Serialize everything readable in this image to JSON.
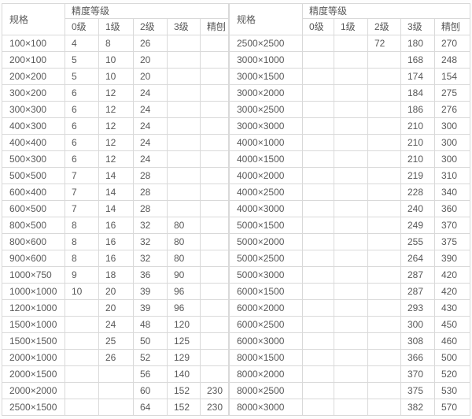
{
  "colors": {
    "border": "#d9d9d9",
    "text": "#595959",
    "cell_background": "#ffffff"
  },
  "left_table": {
    "spec_header": "规格",
    "grade_header": "精度等级",
    "grade_columns": [
      "0级",
      "1级",
      "2级",
      "3级",
      "精刨"
    ],
    "rows": [
      {
        "spec": "100×100",
        "values": [
          "4",
          "8",
          "26",
          "",
          ""
        ]
      },
      {
        "spec": "200×100",
        "values": [
          "5",
          "10",
          "20",
          "",
          ""
        ]
      },
      {
        "spec": "200×200",
        "values": [
          "5",
          "10",
          "20",
          "",
          ""
        ]
      },
      {
        "spec": "300×200",
        "values": [
          "6",
          "12",
          "24",
          "",
          ""
        ]
      },
      {
        "spec": "300×300",
        "values": [
          "6",
          "12",
          "24",
          "",
          ""
        ]
      },
      {
        "spec": "400×300",
        "values": [
          "6",
          "12",
          "24",
          "",
          ""
        ]
      },
      {
        "spec": "400×400",
        "values": [
          "6",
          "12",
          "24",
          "",
          ""
        ]
      },
      {
        "spec": "500×300",
        "values": [
          "6",
          "12",
          "24",
          "",
          ""
        ]
      },
      {
        "spec": "500×500",
        "values": [
          "7",
          "14",
          "28",
          "",
          ""
        ]
      },
      {
        "spec": "600×400",
        "values": [
          "7",
          "14",
          "28",
          "",
          ""
        ]
      },
      {
        "spec": "600×500",
        "values": [
          "7",
          "14",
          "28",
          "",
          ""
        ]
      },
      {
        "spec": "800×500",
        "values": [
          "8",
          "16",
          "32",
          "80",
          ""
        ]
      },
      {
        "spec": "800×600",
        "values": [
          "8",
          "16",
          "32",
          "80",
          ""
        ]
      },
      {
        "spec": "900×600",
        "values": [
          "8",
          "16",
          "32",
          "80",
          ""
        ]
      },
      {
        "spec": "1000×750",
        "values": [
          "9",
          "18",
          "36",
          "90",
          ""
        ]
      },
      {
        "spec": "1000×1000",
        "values": [
          "10",
          "20",
          "39",
          "96",
          ""
        ]
      },
      {
        "spec": "1200×1000",
        "values": [
          "",
          "20",
          "39",
          "96",
          ""
        ]
      },
      {
        "spec": "1500×1000",
        "values": [
          "",
          "24",
          "48",
          "120",
          ""
        ]
      },
      {
        "spec": "1500×1500",
        "values": [
          "",
          "25",
          "50",
          "125",
          ""
        ]
      },
      {
        "spec": "2000×1000",
        "values": [
          "",
          "26",
          "52",
          "129",
          ""
        ]
      },
      {
        "spec": "2000×1500",
        "values": [
          "",
          "",
          "56",
          "140",
          ""
        ]
      },
      {
        "spec": "2000×2000",
        "values": [
          "",
          "",
          "60",
          "152",
          "230"
        ]
      },
      {
        "spec": "2500×1500",
        "values": [
          "",
          "",
          "64",
          "152",
          "230"
        ]
      }
    ]
  },
  "right_table": {
    "spec_header": "规格",
    "grade_header": "精度等级",
    "grade_columns": [
      "0级",
      "1级",
      "2级",
      "3级",
      "精刨"
    ],
    "rows": [
      {
        "spec": "2500×2500",
        "values": [
          "",
          "",
          "72",
          "180",
          "270"
        ]
      },
      {
        "spec": "3000×1000",
        "values": [
          "",
          "",
          "",
          "168",
          "248"
        ]
      },
      {
        "spec": "3000×1500",
        "values": [
          "",
          "",
          "",
          "174",
          "154"
        ]
      },
      {
        "spec": "3000×2000",
        "values": [
          "",
          "",
          "",
          "184",
          "275"
        ]
      },
      {
        "spec": "3000×2500",
        "values": [
          "",
          "",
          "",
          "186",
          "276"
        ]
      },
      {
        "spec": "3000×3000",
        "values": [
          "",
          "",
          "",
          "210",
          "300"
        ]
      },
      {
        "spec": "4000×1000",
        "values": [
          "",
          "",
          "",
          "210",
          "300"
        ]
      },
      {
        "spec": "4000×1500",
        "values": [
          "",
          "",
          "",
          "210",
          "300"
        ]
      },
      {
        "spec": "4000×2000",
        "values": [
          "",
          "",
          "",
          "219",
          "310"
        ]
      },
      {
        "spec": "4000×2500",
        "values": [
          "",
          "",
          "",
          "228",
          "340"
        ]
      },
      {
        "spec": "4000×3000",
        "values": [
          "",
          "",
          "",
          "240",
          "360"
        ]
      },
      {
        "spec": "5000×1500",
        "values": [
          "",
          "",
          "",
          "249",
          "370"
        ]
      },
      {
        "spec": "5000×2000",
        "values": [
          "",
          "",
          "",
          "255",
          "375"
        ]
      },
      {
        "spec": "5000×2500",
        "values": [
          "",
          "",
          "",
          "264",
          "390"
        ]
      },
      {
        "spec": "5000×3000",
        "values": [
          "",
          "",
          "",
          "287",
          "420"
        ]
      },
      {
        "spec": "6000×1500",
        "values": [
          "",
          "",
          "",
          "287",
          "420"
        ]
      },
      {
        "spec": "6000×2000",
        "values": [
          "",
          "",
          "",
          "293",
          "430"
        ]
      },
      {
        "spec": "6000×2500",
        "values": [
          "",
          "",
          "",
          "300",
          "450"
        ]
      },
      {
        "spec": "6000×3000",
        "values": [
          "",
          "",
          "",
          "308",
          "460"
        ]
      },
      {
        "spec": "8000×1500",
        "values": [
          "",
          "",
          "",
          "366",
          "500"
        ]
      },
      {
        "spec": "8000×2000",
        "values": [
          "",
          "",
          "",
          "370",
          "520"
        ]
      },
      {
        "spec": "8000×2500",
        "values": [
          "",
          "",
          "",
          "375",
          "530"
        ]
      },
      {
        "spec": "8000×3000",
        "values": [
          "",
          "",
          "",
          "382",
          "570"
        ]
      }
    ]
  }
}
